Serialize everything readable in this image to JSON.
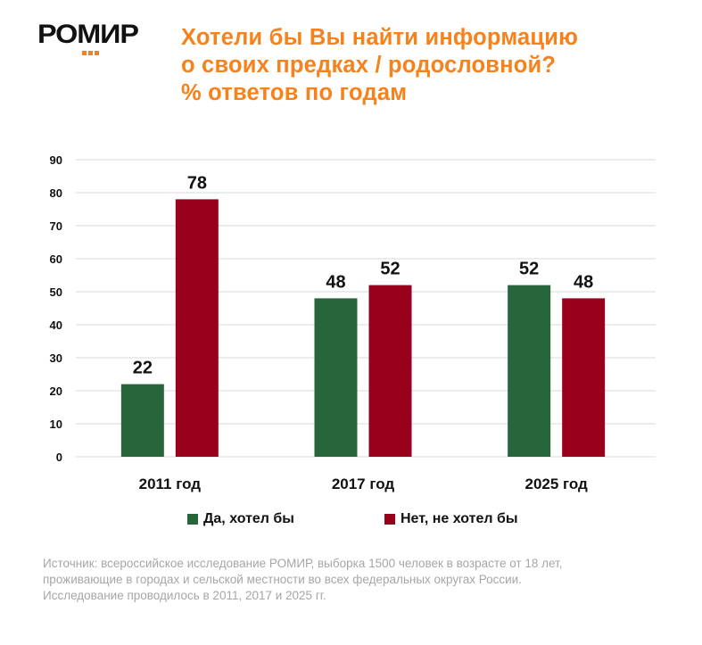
{
  "logo": {
    "text": "РОМИР",
    "accent_color": "#f7821b"
  },
  "title_lines": [
    "Хотели бы Вы найти информацию",
    "о своих предках / родословной?",
    "% ответов по годам"
  ],
  "chart_data": {
    "type": "bar",
    "title": "Хотели бы Вы найти информацию о своих предках / родословной? % ответов по годам",
    "xlabel": "",
    "ylabel": "",
    "categories": [
      "2011 год",
      "2017 год",
      "2025 год"
    ],
    "series": [
      {
        "name": "Да, хотел бы",
        "color": "#27663a",
        "values": [
          22,
          48,
          52
        ]
      },
      {
        "name": "Нет, не хотел бы",
        "color": "#98001c",
        "values": [
          78,
          52,
          48
        ]
      }
    ],
    "ylim": [
      0,
      90
    ],
    "yticks": [
      0,
      10,
      20,
      30,
      40,
      50,
      60,
      70,
      80,
      90
    ],
    "grid": true,
    "legend_position": "bottom"
  },
  "footnote_lines": [
    "Источник: всероссийское исследование РОМИР, выборка 1500 человек в возрасте от 18 лет,",
    "проживающие в городах и сельской местности во всех федеральных округах России.",
    "Исследование проводилось в 2011, 2017 и 2025 гг."
  ]
}
